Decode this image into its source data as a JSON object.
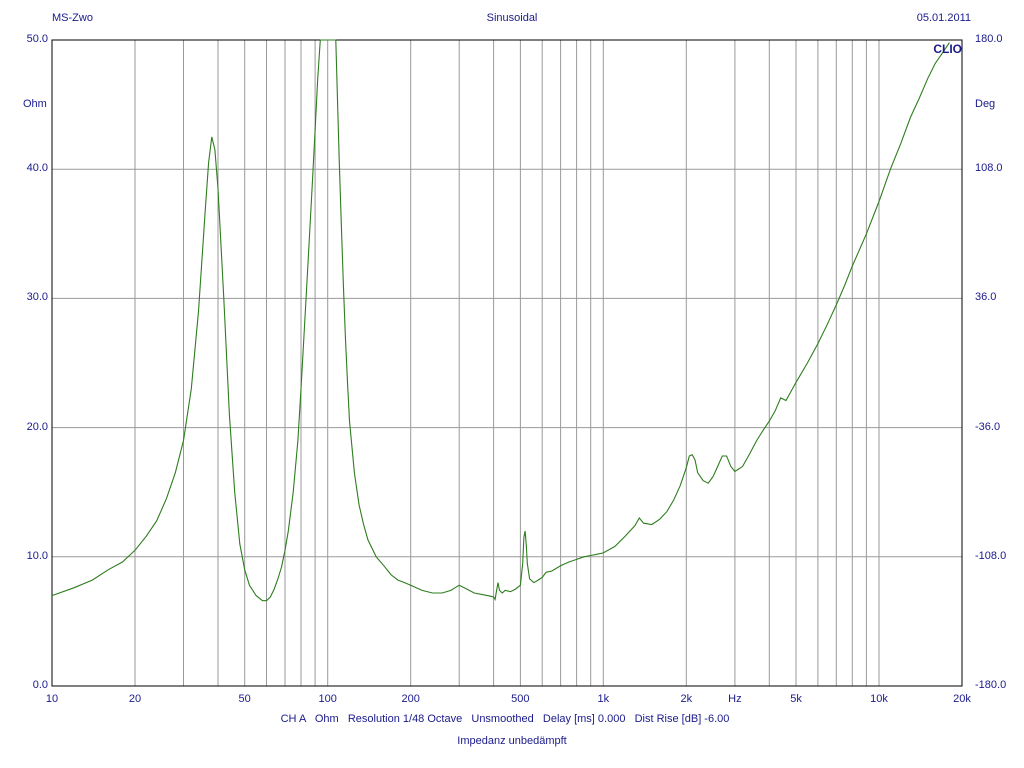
{
  "header": {
    "left": "MS-Zwo",
    "center": "Sinusoidal",
    "right": "05.01.2011"
  },
  "brand": "CLIO",
  "footer": {
    "settings_line": "CH A   Ohm   Resolution 1/48 Octave   Unsmoothed   Delay [ms] 0.000   Dist Rise [dB] -6.00",
    "caption": "Impedanz unbedämpft"
  },
  "colors": {
    "frame": "#000000",
    "grid": "#9a9a9a",
    "label_text": "#1a1a8c",
    "trace": "#2e7d1e"
  },
  "chart_data": {
    "type": "line",
    "x_scale": "log",
    "xlim": [
      10,
      20000
    ],
    "x_tick_labels": [
      {
        "v": 10,
        "t": "10"
      },
      {
        "v": 20,
        "t": "20"
      },
      {
        "v": 50,
        "t": "50"
      },
      {
        "v": 100,
        "t": "100"
      },
      {
        "v": 200,
        "t": "200"
      },
      {
        "v": 500,
        "t": "500"
      },
      {
        "v": 1000,
        "t": "1k"
      },
      {
        "v": 2000,
        "t": "2k"
      },
      {
        "v": 5000,
        "t": "5k"
      },
      {
        "v": 10000,
        "t": "10k"
      },
      {
        "v": 20000,
        "t": "20k"
      }
    ],
    "x_unit_label": "Hz",
    "x_unit_at": 3000,
    "ylim": [
      0,
      50
    ],
    "y_ticks": [
      0,
      10,
      20,
      30,
      40,
      50
    ],
    "y_tick_labels": [
      "0.0",
      "10.0",
      "20.0",
      "30.0",
      "40.0",
      "50.0"
    ],
    "ylabel": "Ohm",
    "y2lim": [
      -180,
      180
    ],
    "y2_ticks": [
      -180,
      -108,
      -36,
      36,
      108,
      180
    ],
    "y2_tick_labels": [
      "-180.0",
      "-108.0",
      "-36.0",
      "36.0",
      "108.0",
      "180.0"
    ],
    "y2label": "Deg",
    "grid": true,
    "series": [
      {
        "x": [
          10,
          12,
          14,
          16,
          18,
          20,
          22,
          24,
          26,
          28,
          30,
          32,
          34,
          36,
          37,
          38,
          39,
          40,
          42,
          44,
          46,
          48,
          50,
          52,
          55,
          58,
          60,
          62,
          64,
          66,
          68,
          70,
          72,
          75,
          78,
          80,
          82,
          85,
          88,
          90,
          92,
          94,
          96,
          98,
          100,
          102,
          104,
          106,
          107,
          108,
          109,
          110,
          112,
          114,
          116,
          118,
          120,
          125,
          130,
          135,
          140,
          150,
          160,
          170,
          180,
          190,
          200,
          220,
          240,
          260,
          280,
          300,
          320,
          340,
          360,
          380,
          400,
          405,
          410,
          415,
          420,
          430,
          440,
          460,
          480,
          500,
          510,
          515,
          520,
          525,
          530,
          540,
          560,
          580,
          600,
          620,
          650,
          700,
          750,
          800,
          850,
          900,
          950,
          1000,
          1100,
          1200,
          1300,
          1350,
          1400,
          1500,
          1600,
          1700,
          1800,
          1900,
          2000,
          2050,
          2100,
          2150,
          2200,
          2300,
          2400,
          2500,
          2600,
          2700,
          2800,
          2900,
          3000,
          3200,
          3400,
          3600,
          3800,
          4000,
          4200,
          4400,
          4600,
          5000,
          5500,
          6000,
          6500,
          7000,
          7500,
          8000,
          9000,
          10000,
          11000,
          12000,
          13000,
          14000,
          15000,
          16000,
          17000,
          18000
        ],
        "values": [
          7.0,
          7.6,
          8.2,
          9.0,
          9.6,
          10.5,
          11.6,
          12.8,
          14.5,
          16.5,
          19.0,
          23.0,
          29.0,
          37.0,
          40.5,
          42.5,
          41.5,
          38.5,
          30.0,
          21.0,
          15.0,
          11.0,
          9.0,
          7.8,
          7.0,
          6.6,
          6.6,
          6.9,
          7.5,
          8.3,
          9.2,
          10.5,
          12.0,
          15.0,
          19.0,
          23.0,
          27.0,
          33.0,
          39.0,
          43.0,
          47.0,
          50.0,
          50.0,
          50.0,
          50.0,
          50.0,
          50.0,
          50.0,
          50.0,
          47.0,
          44.0,
          41.0,
          36.0,
          31.0,
          27.0,
          23.5,
          20.5,
          16.5,
          14.0,
          12.5,
          11.3,
          10.0,
          9.3,
          8.6,
          8.2,
          8.0,
          7.8,
          7.4,
          7.2,
          7.2,
          7.4,
          7.8,
          7.5,
          7.2,
          7.1,
          7.0,
          6.9,
          6.7,
          7.4,
          8.0,
          7.4,
          7.2,
          7.4,
          7.3,
          7.5,
          7.8,
          9.5,
          11.5,
          12.0,
          11.0,
          9.5,
          8.3,
          8.0,
          8.2,
          8.4,
          8.8,
          8.9,
          9.3,
          9.6,
          9.8,
          10.0,
          10.1,
          10.2,
          10.3,
          10.8,
          11.6,
          12.4,
          13.0,
          12.6,
          12.5,
          12.9,
          13.5,
          14.4,
          15.5,
          16.9,
          17.8,
          17.9,
          17.5,
          16.5,
          15.9,
          15.7,
          16.2,
          17.0,
          17.8,
          17.8,
          17.0,
          16.6,
          17.0,
          18.0,
          19.0,
          19.8,
          20.5,
          21.3,
          22.3,
          22.1,
          23.5,
          25.0,
          26.5,
          28.0,
          29.5,
          31.0,
          32.5,
          35.0,
          37.5,
          40.0,
          42.0,
          44.0,
          45.5,
          47.0,
          48.2,
          49.0,
          49.8
        ]
      }
    ]
  }
}
